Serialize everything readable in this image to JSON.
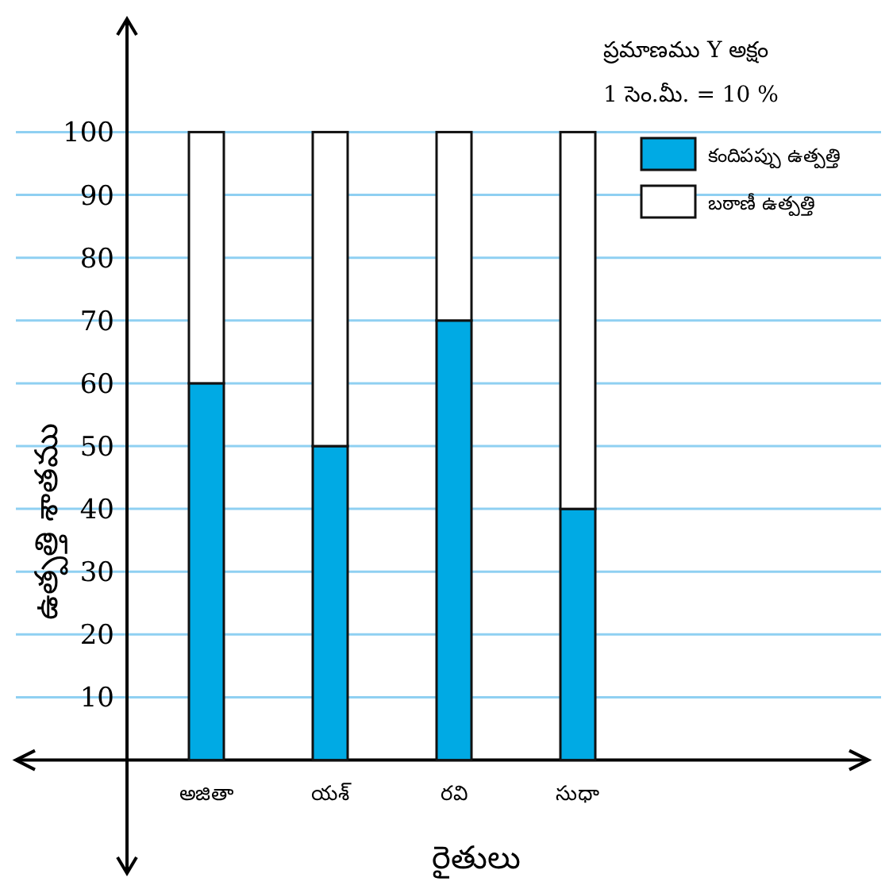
{
  "chart_data": {
    "type": "bar",
    "stacked": true,
    "title": "ప్రమాణము Y అక్షం",
    "subtitle": "1 సెం.మీ. = 10 %",
    "xlabel": "రైతులు",
    "ylabel": "ఉత్పత్తి శాతము",
    "categories": [
      "అజితా",
      "యశ్",
      "రవి",
      "సుధా"
    ],
    "series": [
      {
        "name": "కందిపప్పు ఉత్పత్తి",
        "color": "#00aae4",
        "values": [
          60,
          50,
          70,
          40
        ]
      },
      {
        "name": "బఠాణీ ఉత్పత్తి",
        "color": "#ffffff",
        "values": [
          40,
          50,
          30,
          60
        ]
      }
    ],
    "ylim": [
      -18,
      118
    ],
    "yticks": [
      10,
      20,
      30,
      40,
      50,
      60,
      70,
      80,
      90,
      100
    ],
    "grid": "y",
    "legend": "top right"
  }
}
